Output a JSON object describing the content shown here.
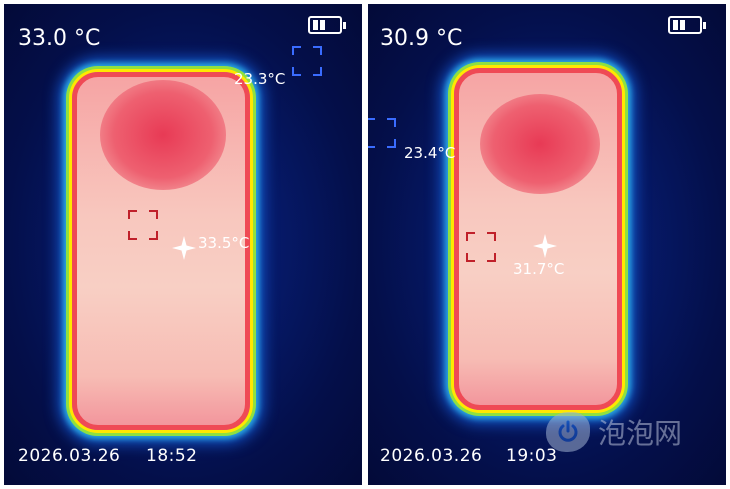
{
  "left": {
    "max_temp": "33.0 °C",
    "cold_spot": "23.3°C",
    "hot_spot": "33.5°C",
    "date": "2026.03.26",
    "time": "18:52"
  },
  "right": {
    "max_temp": "30.9 °C",
    "cold_spot": "23.4°C",
    "hot_spot": "31.7°C",
    "date": "2026.03.26",
    "time": "19:03"
  },
  "watermark": {
    "text": "泡泡网",
    "icon": "power-icon"
  },
  "colors": {
    "background": "#061a6a",
    "hot": "#e83a55",
    "edge": "#ffe800",
    "cold_marker": "#3a6cff",
    "center_marker": "#c0202a"
  }
}
